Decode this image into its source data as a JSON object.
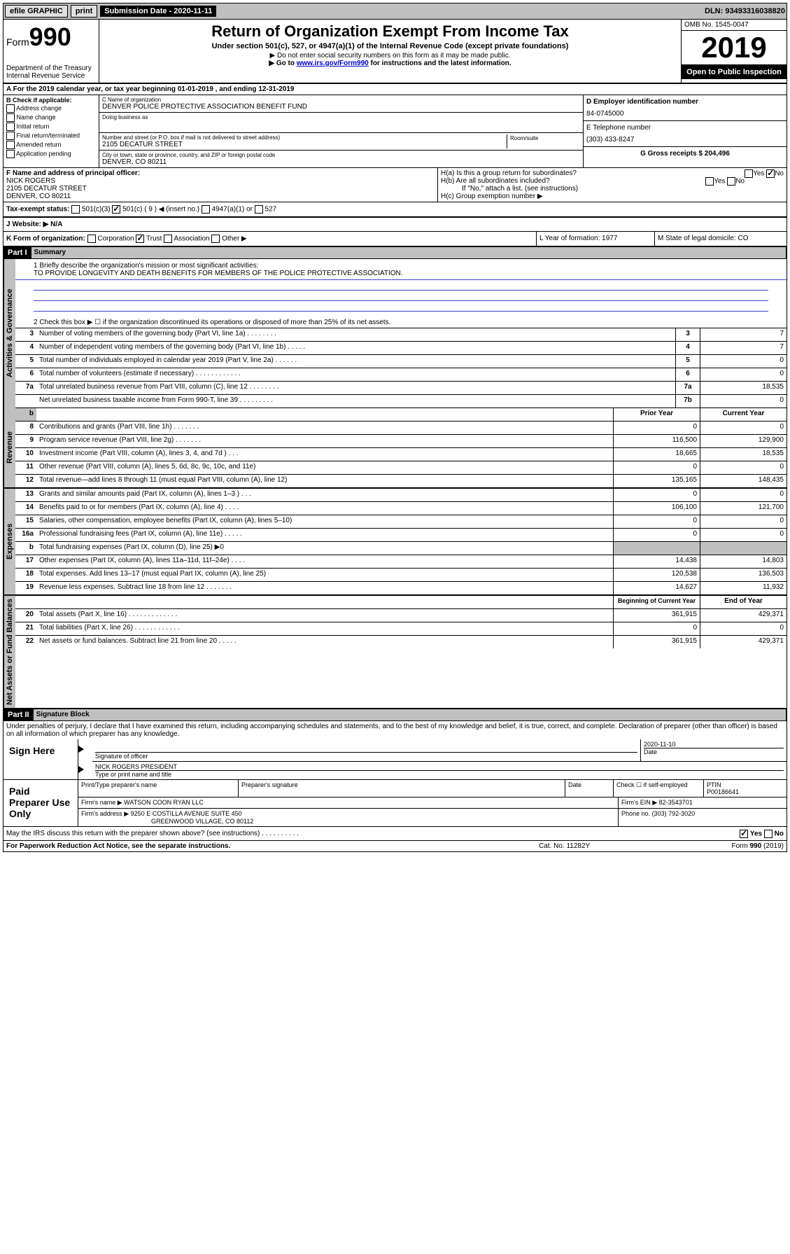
{
  "top_bar": {
    "efile": "efile GRAPHIC",
    "print": "print",
    "sub_date_label": "Submission Date - 2020-11-11",
    "dln": "DLN: 93493316038820"
  },
  "header": {
    "form_label": "Form",
    "form_number": "990",
    "dept": "Department of the Treasury\nInternal Revenue Service",
    "title": "Return of Organization Exempt From Income Tax",
    "subtitle": "Under section 501(c), 527, or 4947(a)(1) of the Internal Revenue Code (except private foundations)",
    "note1": "▶ Do not enter social security numbers on this form as it may be made public.",
    "note2_prefix": "▶ Go to ",
    "note2_link": "www.irs.gov/Form990",
    "note2_suffix": " for instructions and the latest information.",
    "omb": "OMB No. 1545-0047",
    "year": "2019",
    "open": "Open to Public Inspection"
  },
  "row_a": "A For the 2019 calendar year, or tax year beginning 01-01-2019    , and ending 12-31-2019",
  "section_b": {
    "check_label": "B Check if applicable:",
    "checks": [
      "Address change",
      "Name change",
      "Initial return",
      "Final return/terminated",
      "Amended return",
      "Application pending"
    ],
    "c_name_label": "C Name of organization",
    "c_name": "DENVER POLICE PROTECTIVE ASSOCIATION BENEFIT FUND",
    "dba_label": "Doing business as",
    "addr_label": "Number and street (or P.O. box if mail is not delivered to street address)",
    "room_label": "Room/suite",
    "addr": "2105 DECATUR STREET",
    "city_label": "City or town, state or province, country, and ZIP or foreign postal code",
    "city": "DENVER, CO  80211",
    "d_label": "D Employer identification number",
    "d_val": "84-0745000",
    "e_label": "E Telephone number",
    "e_val": "(303) 433-8247",
    "g_label": "G Gross receipts $ 204,496"
  },
  "section_f": {
    "label": "F  Name and address of principal officer:",
    "name": "NICK ROGERS",
    "addr": "2105 DECATUR STREET\nDENVER, CO  80211"
  },
  "section_h": {
    "ha": "H(a)  Is this a group return for subordinates?",
    "hb": "H(b)  Are all subordinates included?",
    "hb_note": "If \"No,\" attach a list. (see instructions)",
    "hc": "H(c)  Group exemption number ▶"
  },
  "tax_status": {
    "label": "Tax-exempt status:",
    "opts": [
      "501(c)(3)",
      "501(c) ( 9 ) ◀ (insert no.)",
      "4947(a)(1) or",
      "527"
    ],
    "checked_index": 1
  },
  "website": {
    "label": "J  Website: ▶",
    "val": "N/A"
  },
  "section_k": {
    "label": "K Form of organization:",
    "opts": [
      "Corporation",
      "Trust",
      "Association",
      "Other ▶"
    ],
    "checked_index": 1,
    "l_label": "L Year of formation: 1977",
    "m_label": "M State of legal domicile: CO"
  },
  "part1": {
    "header": "Part I",
    "title": "Summary",
    "line1_label": "1  Briefly describe the organization's mission or most significant activities:",
    "line1_val": "TO PROVIDE LONGEVITY AND DEATH BENEFITS FOR MEMBERS OF THE POLICE PROTECTIVE ASSOCIATION.",
    "line2": "2  Check this box ▶ ☐  if the organization discontinued its operations or disposed of more than 25% of its net assets."
  },
  "side_labels": {
    "gov": "Activities & Governance",
    "rev": "Revenue",
    "exp": "Expenses",
    "net": "Net Assets or Fund Balances"
  },
  "governance_rows": [
    {
      "num": "3",
      "text": "Number of voting members of the governing body (Part VI, line 1a)  .   .   .   .   .   .   .   .",
      "box": "3",
      "val": "7"
    },
    {
      "num": "4",
      "text": "Number of independent voting members of the governing body (Part VI, line 1b)  .   .   .   .   .",
      "box": "4",
      "val": "7"
    },
    {
      "num": "5",
      "text": "Total number of individuals employed in calendar year 2019 (Part V, line 2a)  .   .   .   .   .   .",
      "box": "5",
      "val": "0"
    },
    {
      "num": "6",
      "text": "Total number of volunteers (estimate if necessary)  .   .   .   .   .   .   .   .   .   .   .   .",
      "box": "6",
      "val": "0"
    },
    {
      "num": "7a",
      "text": "Total unrelated business revenue from Part VIII, column (C), line 12  .   .   .   .   .   .   .   .",
      "box": "7a",
      "val": "18,535"
    },
    {
      "num": "",
      "text": "Net unrelated business taxable income from Form 990-T, line 39  .   .   .   .   .   .   .   .   .",
      "box": "7b",
      "val": "0"
    }
  ],
  "col_headers": {
    "prior": "Prior Year",
    "current": "Current Year"
  },
  "revenue_rows": [
    {
      "num": "8",
      "text": "Contributions and grants (Part VIII, line 1h)  .   .   .   .   .   .   .",
      "prior": "0",
      "curr": "0"
    },
    {
      "num": "9",
      "text": "Program service revenue (Part VIII, line 2g)  .   .   .   .   .   .   .",
      "prior": "116,500",
      "curr": "129,900"
    },
    {
      "num": "10",
      "text": "Investment income (Part VIII, column (A), lines 3, 4, and 7d )  .   .   .",
      "prior": "18,665",
      "curr": "18,535"
    },
    {
      "num": "11",
      "text": "Other revenue (Part VIII, column (A), lines 5, 6d, 8c, 9c, 10c, and 11e)",
      "prior": "0",
      "curr": "0"
    },
    {
      "num": "12",
      "text": "Total revenue—add lines 8 through 11 (must equal Part VIII, column (A), line 12)",
      "prior": "135,165",
      "curr": "148,435"
    }
  ],
  "expense_rows": [
    {
      "num": "13",
      "text": "Grants and similar amounts paid (Part IX, column (A), lines 1–3 )  .   .   .",
      "prior": "0",
      "curr": "0"
    },
    {
      "num": "14",
      "text": "Benefits paid to or for members (Part IX, column (A), line 4)  .   .   .   .",
      "prior": "106,100",
      "curr": "121,700"
    },
    {
      "num": "15",
      "text": "Salaries, other compensation, employee benefits (Part IX, column (A), lines 5–10)",
      "prior": "0",
      "curr": "0"
    },
    {
      "num": "16a",
      "text": "Professional fundraising fees (Part IX, column (A), line 11e)  .   .   .   .   .",
      "prior": "0",
      "curr": "0"
    },
    {
      "num": "b",
      "text": "Total fundraising expenses (Part IX, column (D), line 25) ▶0",
      "prior": "",
      "curr": "",
      "gray": true
    },
    {
      "num": "17",
      "text": "Other expenses (Part IX, column (A), lines 11a–11d, 11f–24e)  .   .   .   .",
      "prior": "14,438",
      "curr": "14,803"
    },
    {
      "num": "18",
      "text": "Total expenses. Add lines 13–17 (must equal Part IX, column (A), line 25)",
      "prior": "120,538",
      "curr": "136,503"
    },
    {
      "num": "19",
      "text": "Revenue less expenses. Subtract line 18 from line 12  .   .   .   .   .   .   .",
      "prior": "14,627",
      "curr": "11,932"
    }
  ],
  "net_headers": {
    "beg": "Beginning of Current Year",
    "end": "End of Year"
  },
  "net_rows": [
    {
      "num": "20",
      "text": "Total assets (Part X, line 16)  .   .   .   .   .   .   .   .   .   .   .   .   .",
      "prior": "361,915",
      "curr": "429,371"
    },
    {
      "num": "21",
      "text": "Total liabilities (Part X, line 26)  .   .   .   .   .   .   .   .   .   .   .   .",
      "prior": "0",
      "curr": "0"
    },
    {
      "num": "22",
      "text": "Net assets or fund balances. Subtract line 21 from line 20  .   .   .   .   .",
      "prior": "361,915",
      "curr": "429,371"
    }
  ],
  "part2": {
    "header": "Part II",
    "title": "Signature Block",
    "perjury": "Under penalties of perjury, I declare that I have examined this return, including accompanying schedules and statements, and to the best of my knowledge and belief, it is true, correct, and complete. Declaration of preparer (other than officer) is based on all information of which preparer has any knowledge."
  },
  "sign_here": {
    "label": "Sign Here",
    "sig_label": "Signature of officer",
    "date": "2020-11-10",
    "date_label": "Date",
    "name": "NICK ROGERS PRESIDENT",
    "name_label": "Type or print name and title"
  },
  "paid_prep": {
    "label": "Paid Preparer Use Only",
    "h1": "Print/Type preparer's name",
    "h2": "Preparer's signature",
    "h3": "Date",
    "h4_check": "Check ☐ if self-employed",
    "h5": "PTIN",
    "ptin": "P00186641",
    "firm_label": "Firm's name     ▶",
    "firm": "WATSON COON RYAN LLC",
    "ein_label": "Firm's EIN ▶",
    "ein": "82-3543701",
    "addr_label": "Firm's address ▶",
    "addr": "9250 E COSTILLA AVENUE SUITE 450",
    "city": "GREENWOOD VILLAGE, CO  80112",
    "phone_label": "Phone no.",
    "phone": "(303) 792-3020"
  },
  "discuss": "May the IRS discuss this return with the preparer shown above? (see instructions)  .   .   .   .   .   .   .   .   .   .",
  "footer": {
    "left": "For Paperwork Reduction Act Notice, see the separate instructions.",
    "cat": "Cat. No. 11282Y",
    "form": "Form 990 (2019)"
  }
}
